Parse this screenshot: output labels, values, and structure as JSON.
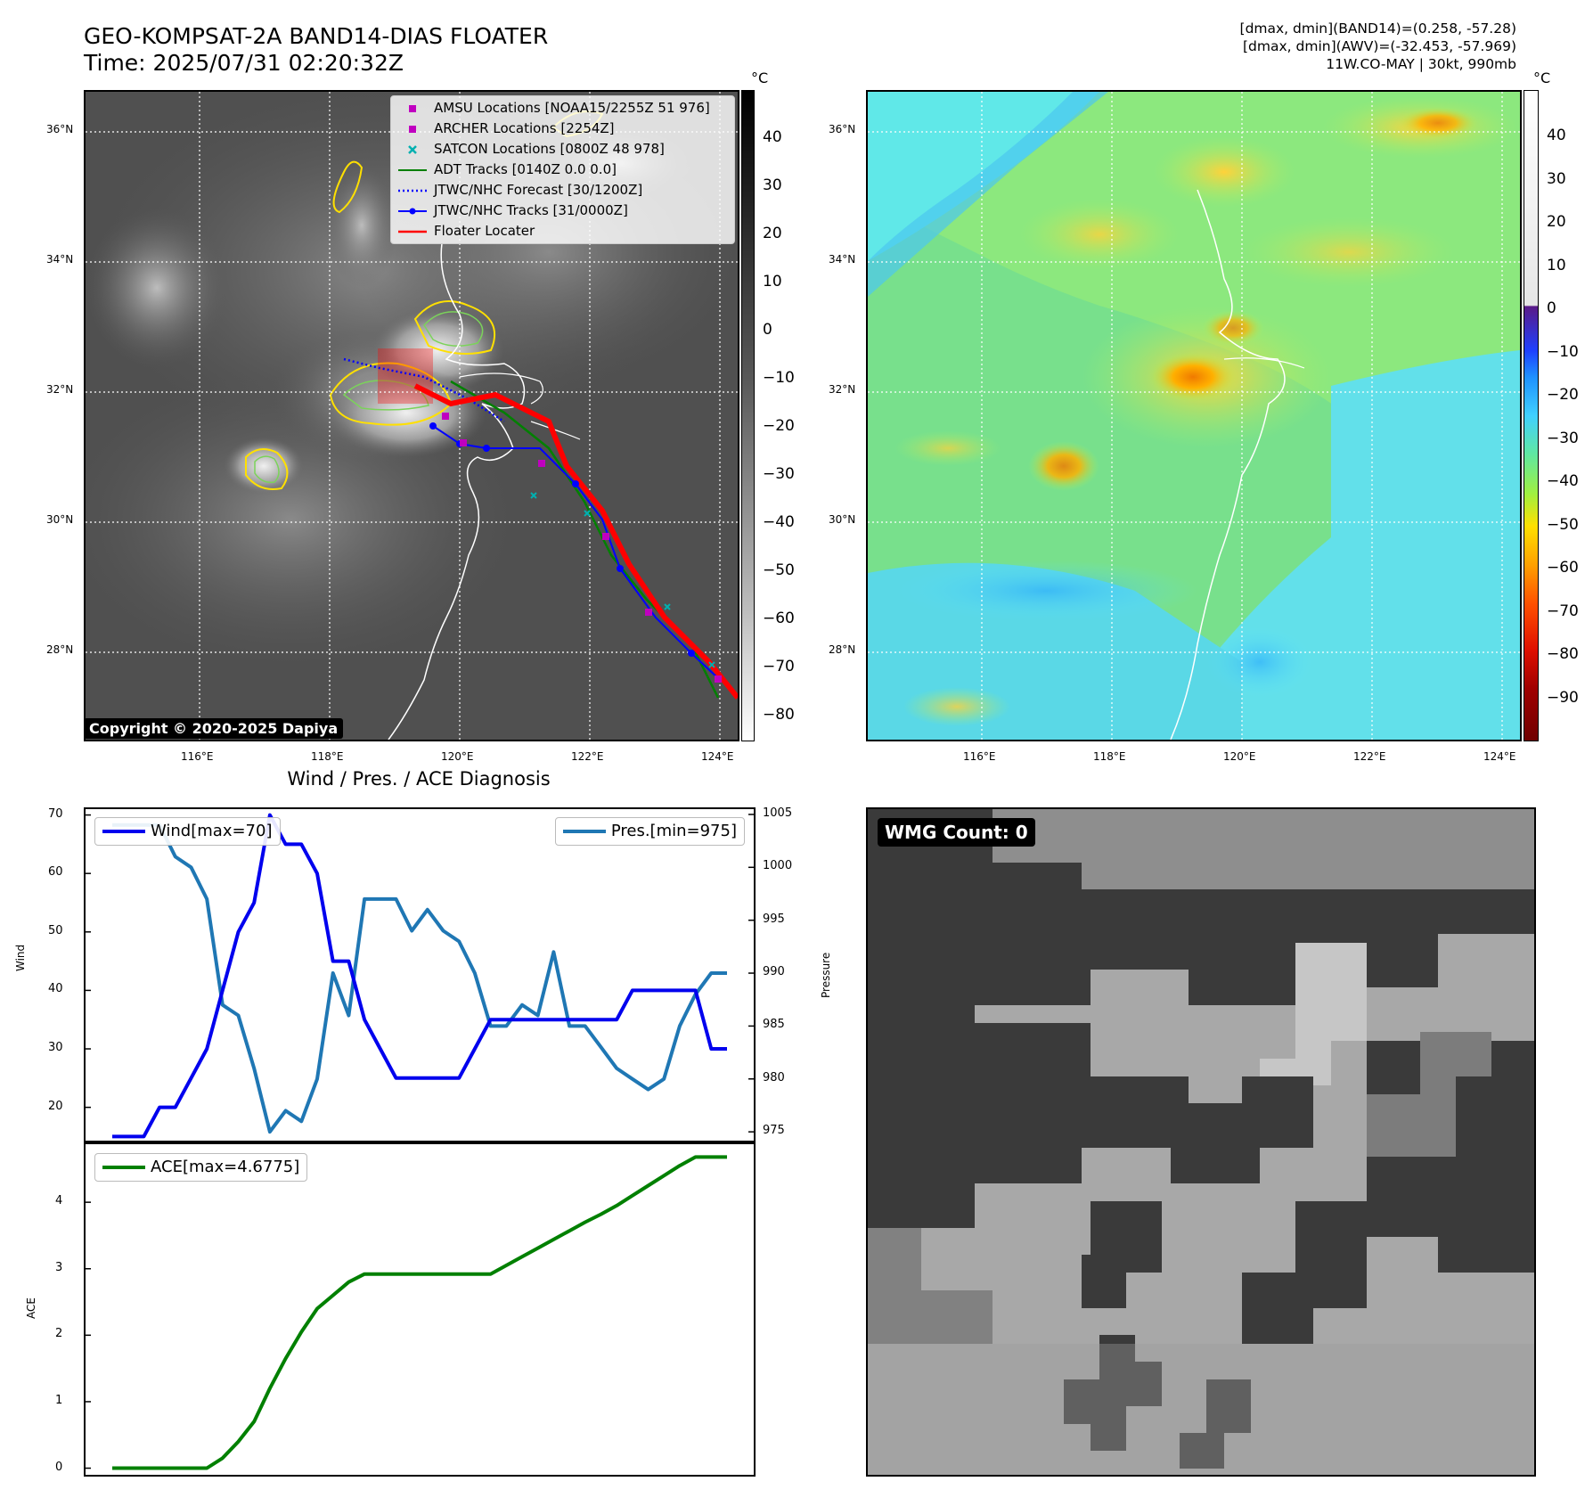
{
  "header": {
    "title_line1": "GEO-KOMPSAT-2A BAND14-DIAS FLOATER",
    "title_line2": "Time: 2025/07/31 02:20:32Z",
    "right_line1": "[dmax, dmin](BAND14)=(0.258, -57.28)",
    "right_line2": "[dmax, dmin](AWV)=(-32.453, -57.969)",
    "right_line3": "11W.CO-MAY | 30kt, 990mb"
  },
  "maps": {
    "lon_ticks": [
      "116°E",
      "118°E",
      "120°E",
      "122°E",
      "124°E"
    ],
    "lat_ticks": [
      "36°N",
      "34°N",
      "32°N",
      "30°N",
      "28°N"
    ],
    "copyright": "Copyright © 2020-2025 Dapiya",
    "cb_unit": "°C",
    "ir_colorbar_ticks": [
      "40",
      "30",
      "20",
      "10",
      "0",
      "−10",
      "−20",
      "−30",
      "−40",
      "−50",
      "−60",
      "−70",
      "−80"
    ],
    "wv_colorbar_ticks": [
      "40",
      "30",
      "20",
      "10",
      "0",
      "−10",
      "−20",
      "−30",
      "−40",
      "−50",
      "−60",
      "−70",
      "−80",
      "−90"
    ],
    "legend": [
      {
        "label": "AMSU Locations [NOAA15/2255Z 51 976]",
        "color": "#c000c0",
        "symbol": "square"
      },
      {
        "label": "ARCHER Locations [2254Z]",
        "color": "#c000c0",
        "symbol": "square"
      },
      {
        "label": "SATCON Locations [0800Z 48 978]",
        "color": "#00b0b0",
        "symbol": "x"
      },
      {
        "label": "ADT Tracks [0140Z 0.0 0.0]",
        "color": "#008000",
        "symbol": "line"
      },
      {
        "label": "JTWC/NHC Forecast [30/1200Z]",
        "color": "#0000ff",
        "symbol": "dotted"
      },
      {
        "label": "JTWC/NHC Tracks [31/0000Z]",
        "color": "#0000ff",
        "symbol": "line-dot"
      },
      {
        "label": "Floater Locater",
        "color": "#ff0000",
        "symbol": "line"
      }
    ],
    "colors": {
      "forecast": "#0000ff",
      "adt": "#008000",
      "floater": "#ff0000",
      "amsu": "#c000c0",
      "satcon": "#00b0b0"
    }
  },
  "wmg": {
    "label": "WMG Count: 0"
  },
  "chart_data": [
    {
      "type": "line",
      "title": "Wind / Pres. / ACE Diagnosis",
      "ylabel": "Wind",
      "ylabel_right": "Pressure",
      "yticks": [
        "70",
        "60",
        "50",
        "40",
        "30",
        "20"
      ],
      "yticks_right": [
        "1005",
        "1000",
        "995",
        "990",
        "985",
        "980",
        "975"
      ],
      "ylim": [
        14,
        71
      ],
      "ylim_right": [
        974,
        1005.5
      ],
      "series": [
        {
          "name": "Wind[max=70]",
          "color": "#0000ee",
          "axis": "left",
          "values": [
            15,
            15,
            15,
            20,
            20,
            25,
            30,
            40,
            50,
            55,
            70,
            65,
            65,
            60,
            45,
            45,
            35,
            30,
            25,
            25,
            25,
            25,
            25,
            30,
            35,
            35,
            35,
            35,
            35,
            35,
            35,
            35,
            35,
            40,
            40,
            40,
            40,
            40,
            30,
            30
          ]
        },
        {
          "name": "Pres.[min=975]",
          "color": "#1f77b4",
          "axis": "right",
          "values": [
            1004,
            1004,
            1004,
            1004,
            1001,
            1000,
            997,
            987,
            986,
            981,
            975,
            977,
            976,
            980,
            990,
            986,
            997,
            997,
            997,
            994,
            996,
            994,
            993,
            990,
            985,
            985,
            987,
            986,
            992,
            985,
            985,
            983,
            981,
            980,
            979,
            980,
            985,
            988,
            990,
            990
          ]
        }
      ]
    },
    {
      "type": "line",
      "ylabel": "ACE",
      "yticks": [
        "4",
        "3",
        "2",
        "1",
        "0"
      ],
      "ylim": [
        -0.1,
        4.9
      ],
      "series": [
        {
          "name": "ACE[max=4.6775]",
          "color": "#008000",
          "values": [
            0,
            0,
            0,
            0,
            0,
            0,
            0,
            0.15,
            0.4,
            0.7,
            1.2,
            1.65,
            2.05,
            2.4,
            2.6,
            2.8,
            2.92,
            2.92,
            2.92,
            2.92,
            2.92,
            2.92,
            2.92,
            2.92,
            2.92,
            3.05,
            3.18,
            3.31,
            3.44,
            3.57,
            3.7,
            3.82,
            3.95,
            4.1,
            4.25,
            4.4,
            4.55,
            4.68,
            4.68,
            4.68
          ]
        }
      ]
    }
  ]
}
